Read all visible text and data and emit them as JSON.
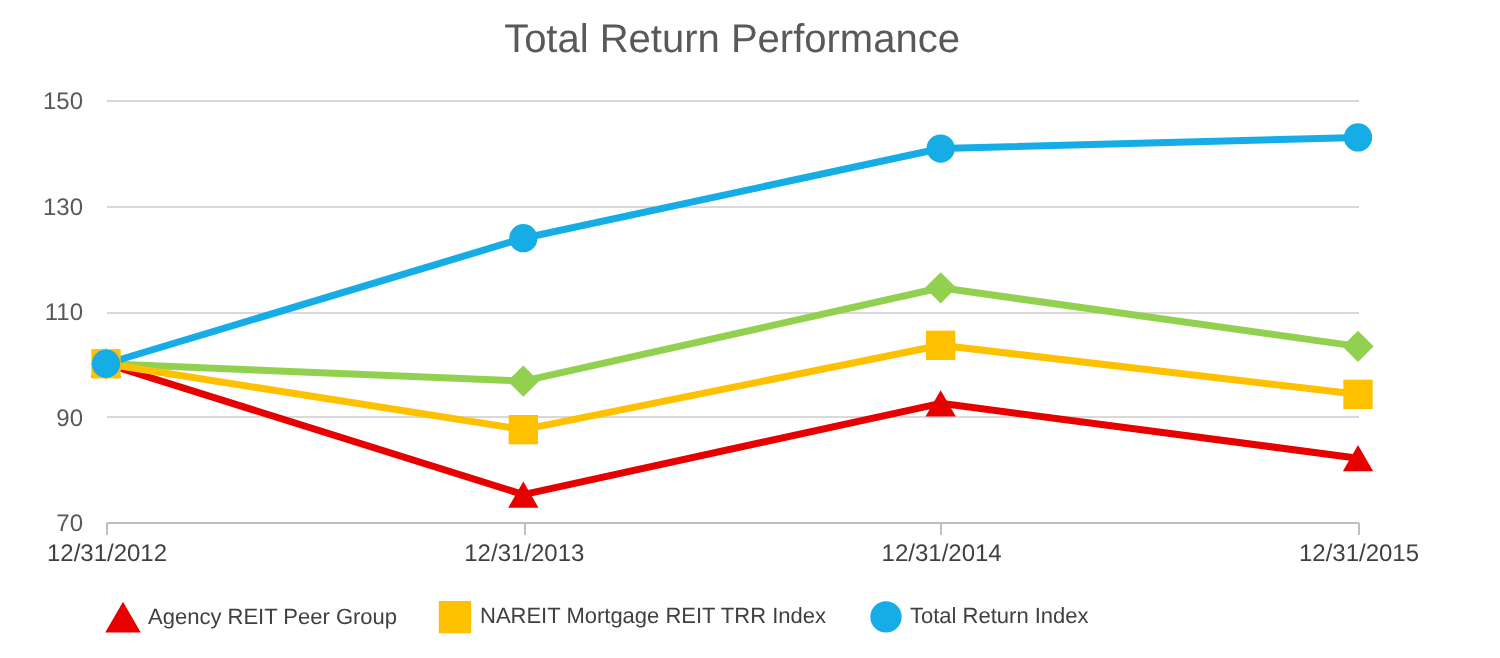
{
  "chart_data": {
    "type": "line",
    "title": "Total Return Performance",
    "categories": [
      "12/31/2012",
      "12/31/2013",
      "12/31/2014",
      "12/31/2015"
    ],
    "series": [
      {
        "color": "#92d050",
        "marker": "diamond",
        "values": [
          100,
          96.7,
          114.4,
          103.3
        ]
      },
      {
        "name": "Agency REIT Peer Group",
        "color": "#e60000",
        "marker": "triangle",
        "values": [
          100,
          75.2,
          92.5,
          82.1
        ]
      },
      {
        "name": "NAREIT Mortgage REIT TRR Index",
        "color": "#ffc000",
        "marker": "square",
        "values": [
          100,
          87.5,
          103.5,
          94.2
        ]
      },
      {
        "name": "Total Return Index",
        "color": "#16ade6",
        "marker": "circle",
        "values": [
          100,
          123.8,
          140.8,
          142.9
        ]
      }
    ],
    "ylim": [
      70,
      150
    ],
    "yticks": [
      70,
      90,
      110,
      130,
      150
    ],
    "grid": "y",
    "legend": "bottom",
    "line_style": "solid"
  }
}
